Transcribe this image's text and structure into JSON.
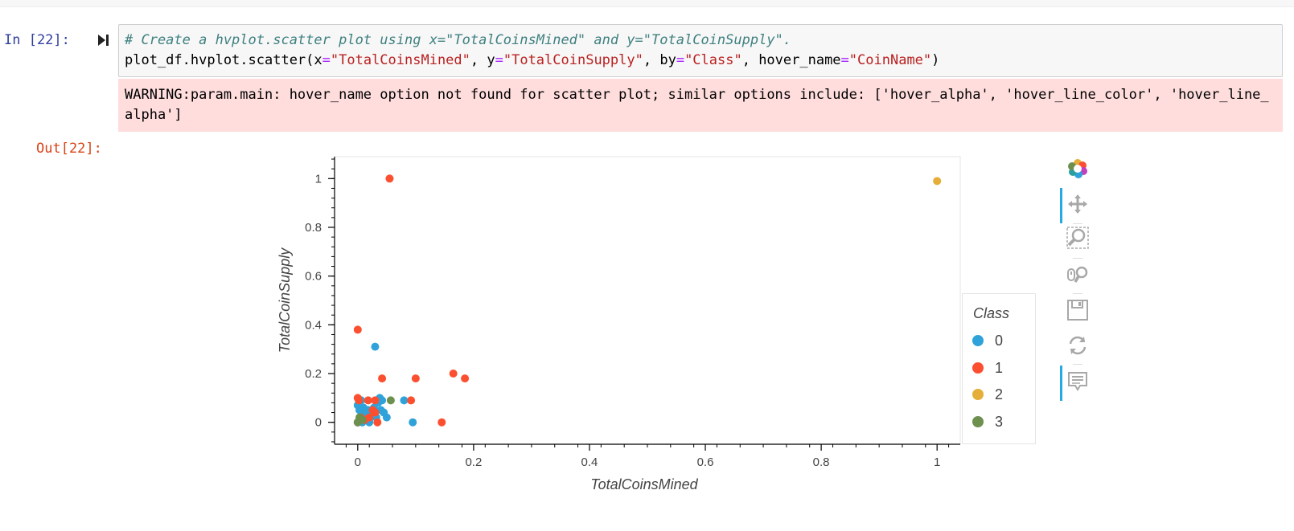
{
  "notebook": {
    "in_prompt": "In [22]:",
    "out_prompt": "Out[22]:",
    "code": {
      "line1": "# Create a hvplot.scatter plot using x=\"TotalCoinsMined\" and y=\"TotalCoinSupply\".",
      "line2_parts": [
        "plot_df.hvplot.scatter(x",
        "=",
        "\"TotalCoinsMined\"",
        ", y",
        "=",
        "\"TotalCoinSupply\"",
        ", by",
        "=",
        "\"Class\"",
        ", hover_name",
        "=",
        "\"CoinName\"",
        ")"
      ]
    },
    "stderr": "WARNING:param.main: hover_name option not found for scatter plot; similar options include: ['hover_alpha', 'hover_line_color', 'hover_line_alpha']"
  },
  "chart_data": {
    "type": "scatter",
    "xlabel": "TotalCoinsMined",
    "ylabel": "TotalCoinSupply",
    "xlim": [
      -0.04,
      1.04
    ],
    "ylim": [
      -0.09,
      1.09
    ],
    "x_ticks": [
      0,
      0.2,
      0.4,
      0.6,
      0.8,
      1
    ],
    "y_ticks": [
      0,
      0.2,
      0.4,
      0.6,
      0.8,
      1
    ],
    "tick_labels": [
      "0",
      "0.2",
      "0.4",
      "0.6",
      "0.8",
      "1"
    ],
    "grid": false,
    "legend": {
      "title": "Class",
      "position": "right"
    },
    "series": [
      {
        "name": "0",
        "color": "#30a2da",
        "points": [
          [
            0.0,
            0.07
          ],
          [
            0.003,
            0.05
          ],
          [
            0.005,
            0.02
          ],
          [
            0.008,
            0.0
          ],
          [
            0.01,
            0.06
          ],
          [
            0.012,
            0.03
          ],
          [
            0.015,
            0.01
          ],
          [
            0.018,
            0.05
          ],
          [
            0.02,
            0.0
          ],
          [
            0.022,
            0.02
          ],
          [
            0.025,
            0.04
          ],
          [
            0.028,
            0.06
          ],
          [
            0.03,
            0.31
          ],
          [
            0.032,
            0.02
          ],
          [
            0.035,
            0.08
          ],
          [
            0.038,
            0.1
          ],
          [
            0.04,
            0.05
          ],
          [
            0.042,
            0.09
          ],
          [
            0.045,
            0.04
          ],
          [
            0.05,
            0.02
          ],
          [
            0.08,
            0.09
          ],
          [
            0.095,
            0.0
          ],
          [
            0.0,
            0.0
          ],
          [
            0.006,
            0.09
          ],
          [
            0.016,
            0.03
          ]
        ]
      },
      {
        "name": "1",
        "color": "#fc4f30",
        "points": [
          [
            0.055,
            1.0
          ],
          [
            0.0,
            0.38
          ],
          [
            0.042,
            0.18
          ],
          [
            0.1,
            0.18
          ],
          [
            0.165,
            0.2
          ],
          [
            0.185,
            0.18
          ],
          [
            0.145,
            0.0
          ],
          [
            0.0,
            0.1
          ],
          [
            0.002,
            0.09
          ],
          [
            0.018,
            0.09
          ],
          [
            0.03,
            0.09
          ],
          [
            0.026,
            0.05
          ],
          [
            0.03,
            0.04
          ],
          [
            0.034,
            0.0
          ],
          [
            0.092,
            0.09
          ],
          [
            0.005,
            0.02
          ],
          [
            0.012,
            0.01
          ],
          [
            0.02,
            0.02
          ],
          [
            0.0,
            0.0
          ]
        ]
      },
      {
        "name": "2",
        "color": "#e5ae38",
        "points": [
          [
            1.0,
            0.99
          ]
        ]
      },
      {
        "name": "3",
        "color": "#6d904f",
        "points": [
          [
            0.057,
            0.09
          ],
          [
            0.0,
            0.0
          ],
          [
            0.003,
            0.02
          ],
          [
            0.008,
            0.01
          ]
        ]
      }
    ]
  },
  "toolbar": {
    "tools": [
      "bokeh-logo-icon",
      "pan-icon",
      "box-zoom-icon",
      "wheel-zoom-icon",
      "save-icon",
      "reset-icon",
      "hover-icon"
    ],
    "active": [
      "pan-icon",
      "hover-icon"
    ]
  }
}
